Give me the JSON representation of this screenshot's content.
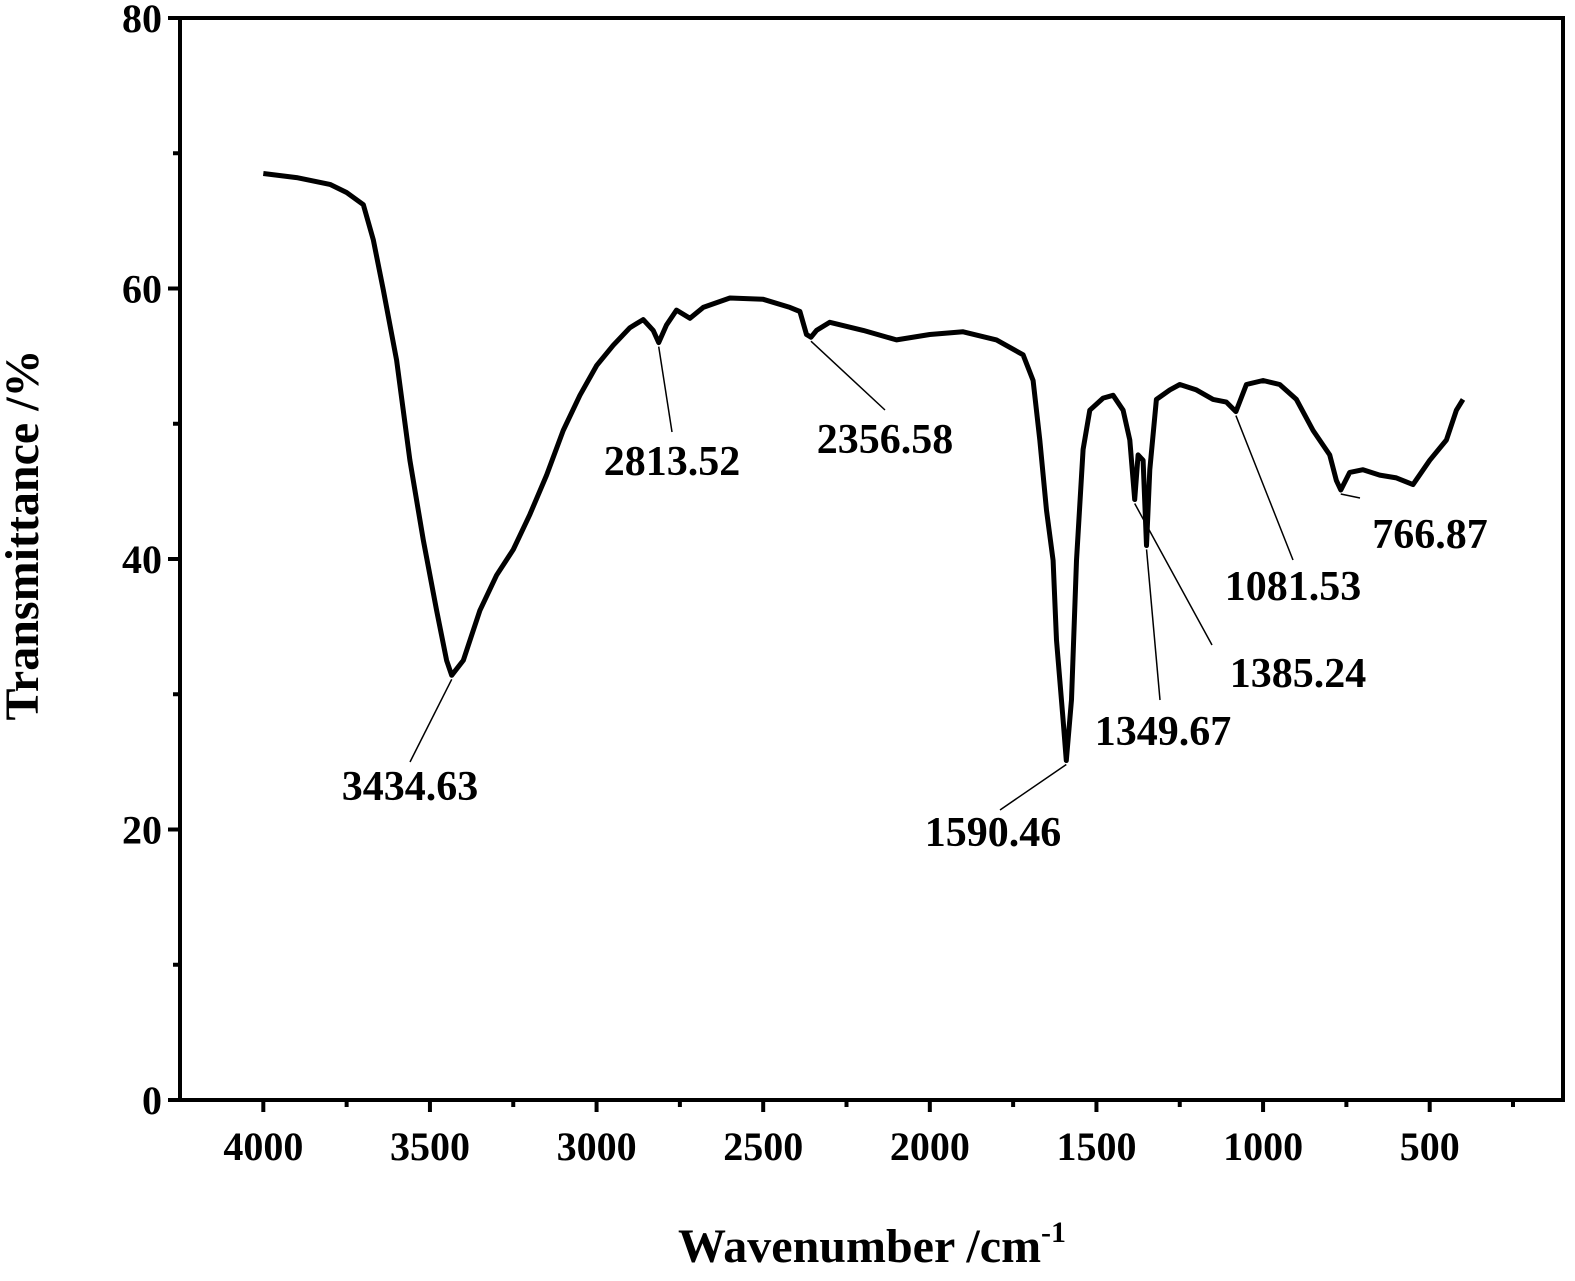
{
  "chart_data": {
    "type": "line",
    "x_label": {
      "text": "Wavenumber /cm",
      "superscript": "-1"
    },
    "y_label": "Transmittance /%",
    "xlim": [
      4250,
      100
    ],
    "ylim": [
      0,
      80
    ],
    "xticks": [
      4000,
      3500,
      3000,
      2500,
      2000,
      1500,
      1000,
      500
    ],
    "xminor": [
      3750,
      3250,
      2750,
      2250,
      1750,
      1250,
      750,
      250
    ],
    "yticks": [
      0,
      20,
      40,
      60,
      80
    ],
    "yminor": [
      10,
      30,
      50,
      70
    ],
    "color": "#000000",
    "x": [
      4000,
      3900,
      3800,
      3750,
      3700,
      3670,
      3640,
      3600,
      3560,
      3520,
      3480,
      3450,
      3434.63,
      3400,
      3350,
      3300,
      3250,
      3200,
      3150,
      3100,
      3050,
      3000,
      2950,
      2900,
      2860,
      2830,
      2813.52,
      2790,
      2760,
      2720,
      2680,
      2600,
      2500,
      2420,
      2390,
      2370,
      2356.58,
      2340,
      2300,
      2200,
      2100,
      2000,
      1900,
      1800,
      1720,
      1690,
      1670,
      1650,
      1630,
      1620,
      1600,
      1590.46,
      1575,
      1560,
      1540,
      1520,
      1480,
      1450,
      1420,
      1400,
      1385.24,
      1375,
      1360,
      1349.67,
      1340,
      1320,
      1280,
      1250,
      1200,
      1150,
      1110,
      1081.53,
      1050,
      1000,
      950,
      900,
      850,
      800,
      780,
      766.87,
      740,
      700,
      650,
      600,
      550,
      500,
      450,
      420,
      400
    ],
    "values": [
      68.5,
      68.2,
      67.7,
      67.1,
      66.2,
      63.6,
      59.9,
      54.7,
      47.3,
      41.4,
      36.2,
      32.5,
      31.4,
      32.5,
      36.2,
      38.8,
      40.7,
      43.3,
      46.2,
      49.5,
      52.1,
      54.3,
      55.8,
      57.1,
      57.7,
      56.9,
      56.0,
      57.3,
      58.4,
      57.8,
      58.6,
      59.3,
      59.2,
      58.6,
      58.3,
      56.6,
      56.4,
      56.9,
      57.5,
      56.9,
      56.2,
      56.6,
      56.8,
      56.2,
      55.1,
      53.2,
      48.8,
      43.6,
      39.9,
      34.0,
      28.1,
      25.1,
      29.6,
      39.9,
      48.1,
      51.0,
      51.9,
      52.1,
      51.0,
      48.8,
      44.4,
      47.7,
      47.3,
      41.0,
      46.6,
      51.8,
      52.5,
      52.9,
      52.5,
      51.8,
      51.6,
      50.9,
      52.9,
      53.2,
      52.9,
      51.8,
      49.5,
      47.7,
      45.8,
      45.1,
      46.4,
      46.6,
      46.2,
      46.0,
      45.5,
      47.3,
      48.8,
      51.0,
      51.8
    ],
    "annotations": [
      {
        "label": "3434.63",
        "x": 3434.63,
        "y": 31.4
      },
      {
        "label": "2813.52",
        "x": 2813.52,
        "y": 56.0
      },
      {
        "label": "2356.58",
        "x": 2356.58,
        "y": 56.4
      },
      {
        "label": "1590.46",
        "x": 1590.46,
        "y": 25.1
      },
      {
        "label": "1349.67",
        "x": 1349.67,
        "y": 41.0
      },
      {
        "label": "1385.24",
        "x": 1385.24,
        "y": 44.4
      },
      {
        "label": "1081.53",
        "x": 1081.53,
        "y": 50.9
      },
      {
        "label": "766.87",
        "x": 766.87,
        "y": 45.1
      }
    ]
  }
}
